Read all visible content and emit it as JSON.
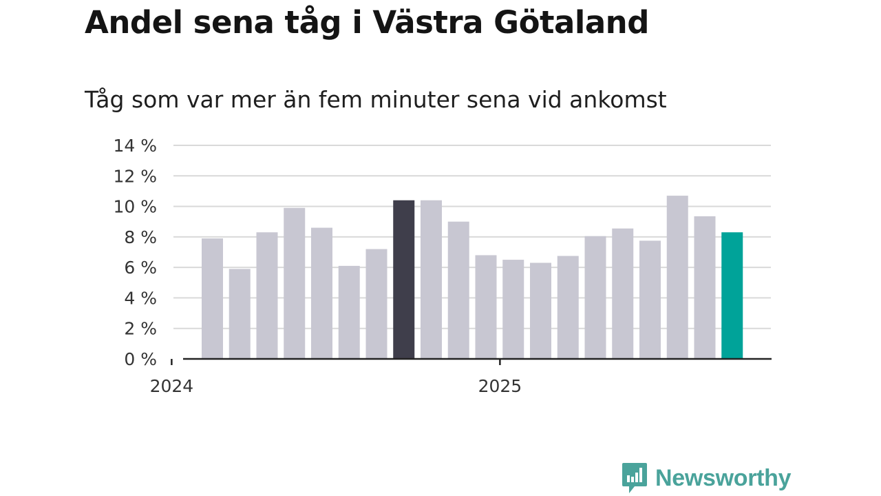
{
  "title": "Andel sena tåg i Västra Götaland",
  "subtitle": "Tåg som var mer än fem minuter sena vid ankomst",
  "brand": {
    "name": "Newsworthy",
    "icon": "bar-chart-logo-icon",
    "color": "#4aa39b"
  },
  "colors": {
    "bar": "#c8c7d2",
    "highlight_dark": "#3f3e4b",
    "highlight_latest": "#00a399",
    "grid": "#d9d9d9",
    "axis": "#222222"
  },
  "chart_data": {
    "type": "bar",
    "title": "Andel sena tåg i Västra Götaland",
    "subtitle": "Tåg som var mer än fem minuter sena vid ankomst",
    "xlabel": "",
    "ylabel": "",
    "y_unit": "%",
    "ylim": [
      0,
      14
    ],
    "yticks": [
      0,
      2,
      4,
      6,
      8,
      10,
      12,
      14
    ],
    "ytick_labels": [
      "0 %",
      "2 %",
      "4 %",
      "6 %",
      "8 %",
      "10 %",
      "12 %",
      "14 %"
    ],
    "grid": true,
    "x_tick_labels": [
      {
        "label": "2024",
        "category_index": 0
      },
      {
        "label": "2025",
        "category_index": 12
      }
    ],
    "categories": [
      "2024-01",
      "2024-02",
      "2024-03",
      "2024-04",
      "2024-05",
      "2024-06",
      "2024-07",
      "2024-08",
      "2024-09",
      "2024-10",
      "2024-11",
      "2024-12",
      "2025-01",
      "2025-02",
      "2025-03",
      "2025-04",
      "2025-05",
      "2025-06",
      "2025-07",
      "2025-08",
      "2025-09",
      "2025-10",
      "2025-11",
      "2025-12"
    ],
    "values": [
      null,
      7.9,
      5.9,
      8.3,
      9.9,
      8.6,
      6.1,
      7.2,
      10.4,
      10.4,
      9.0,
      6.8,
      6.5,
      6.3,
      6.75,
      8.05,
      8.55,
      7.75,
      10.7,
      9.35,
      8.3,
      null,
      null,
      null
    ],
    "highlights": [
      {
        "category_index": 8,
        "color": "#3f3e4b"
      },
      {
        "category_index": 20,
        "color": "#00a399"
      }
    ]
  }
}
